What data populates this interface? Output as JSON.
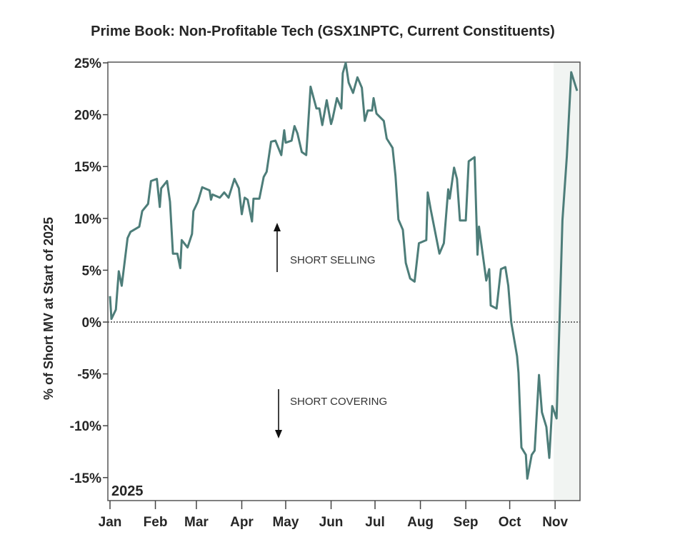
{
  "chart_data": {
    "type": "line",
    "title": "Prime Book: Non-Profitable Tech (GSX1NPTC, Current Constituents)",
    "ylabel": "% of Short MV at Start of 2025",
    "xlabel": "",
    "year_label": "2025",
    "ylim": [
      -17,
      25
    ],
    "xlim": [
      "2025-01-01",
      "2025-11-18"
    ],
    "y_ticks": [
      25,
      20,
      15,
      10,
      5,
      0,
      -5,
      -10,
      -15
    ],
    "y_tick_labels": [
      "25%",
      "20%",
      "15%",
      "10%",
      "5%",
      "0%",
      "-5%",
      "-10%",
      "-15%"
    ],
    "x_ticks": [
      "2025-01-01",
      "2025-02-01",
      "2025-03-01",
      "2025-04-01",
      "2025-05-01",
      "2025-06-01",
      "2025-07-01",
      "2025-08-01",
      "2025-09-01",
      "2025-10-01",
      "2025-11-01"
    ],
    "x_tick_labels": [
      "Jan",
      "Feb",
      "Mar",
      "Apr",
      "May",
      "Jun",
      "Jul",
      "Aug",
      "Sep",
      "Oct",
      "Nov"
    ],
    "reference_line": 0,
    "shaded_region_start": "2025-10-31",
    "grid": false,
    "line_color": "#4d7d79",
    "shade_color": "#f1f4f2",
    "annotations": {
      "up": "SHORT SELLING",
      "down": "SHORT COVERING"
    },
    "series": [
      {
        "x": [
          "2025-01-01",
          "2025-01-02",
          "2025-01-05",
          "2025-01-07",
          "2025-01-09",
          "2025-01-13",
          "2025-01-15",
          "2025-01-21",
          "2025-01-23",
          "2025-01-27",
          "2025-01-29",
          "2025-02-02",
          "2025-02-04",
          "2025-02-05",
          "2025-02-09",
          "2025-02-11",
          "2025-02-13",
          "2025-02-16",
          "2025-02-18",
          "2025-02-19",
          "2025-02-23",
          "2025-02-26",
          "2025-02-27",
          "2025-03-02",
          "2025-03-05",
          "2025-03-10",
          "2025-03-11",
          "2025-03-12",
          "2025-03-17",
          "2025-03-20",
          "2025-03-23",
          "2025-03-27",
          "2025-03-30",
          "2025-04-01",
          "2025-04-03",
          "2025-04-05",
          "2025-04-08",
          "2025-04-09",
          "2025-04-13",
          "2025-04-16",
          "2025-04-18",
          "2025-04-21",
          "2025-04-24",
          "2025-04-28",
          "2025-04-30",
          "2025-05-01",
          "2025-05-05",
          "2025-05-07",
          "2025-05-09",
          "2025-05-12",
          "2025-05-15",
          "2025-05-18",
          "2025-05-22",
          "2025-05-24",
          "2025-05-26",
          "2025-05-29",
          "2025-06-01",
          "2025-06-02",
          "2025-06-05",
          "2025-06-08",
          "2025-06-09",
          "2025-06-11",
          "2025-06-13",
          "2025-06-16",
          "2025-06-19",
          "2025-06-22",
          "2025-06-24",
          "2025-06-26",
          "2025-06-29",
          "2025-06-30",
          "2025-07-02",
          "2025-07-07",
          "2025-07-09",
          "2025-07-13",
          "2025-07-15",
          "2025-07-17",
          "2025-07-20",
          "2025-07-22",
          "2025-07-25",
          "2025-07-28",
          "2025-07-31",
          "2025-08-05",
          "2025-08-06",
          "2025-08-08",
          "2025-08-14",
          "2025-08-17",
          "2025-08-20",
          "2025-08-21",
          "2025-08-24",
          "2025-08-26",
          "2025-08-28",
          "2025-09-01",
          "2025-09-03",
          "2025-09-07",
          "2025-09-09",
          "2025-09-10",
          "2025-09-15",
          "2025-09-17",
          "2025-09-18",
          "2025-09-22",
          "2025-09-25",
          "2025-09-28",
          "2025-09-30",
          "2025-10-02",
          "2025-10-06",
          "2025-10-07",
          "2025-10-09",
          "2025-10-12",
          "2025-10-13",
          "2025-10-16",
          "2025-10-18",
          "2025-10-21",
          "2025-10-23",
          "2025-10-26",
          "2025-10-28",
          "2025-10-30",
          "2025-11-02",
          "2025-11-04",
          "2025-11-06",
          "2025-11-09",
          "2025-11-12",
          "2025-11-16"
        ],
        "y": [
          2.5,
          0.3,
          1.2,
          4.9,
          3.5,
          8.1,
          8.7,
          9.2,
          10.7,
          11.4,
          13.6,
          13.8,
          11.1,
          12.9,
          13.6,
          11.6,
          6.6,
          6.6,
          5.2,
          7.9,
          7.2,
          8.5,
          10.7,
          11.6,
          13.0,
          12.7,
          11.8,
          12.3,
          12.0,
          12.5,
          12.0,
          13.8,
          12.9,
          10.4,
          12.0,
          11.8,
          9.7,
          11.9,
          11.9,
          14.0,
          14.5,
          17.4,
          17.5,
          16.1,
          18.5,
          17.3,
          17.5,
          18.9,
          18.2,
          16.4,
          16.1,
          22.7,
          20.6,
          20.6,
          19.0,
          21.4,
          19.1,
          19.6,
          21.6,
          20.6,
          24.0,
          25.0,
          23.1,
          22.1,
          23.6,
          22.6,
          19.4,
          20.4,
          20.4,
          21.6,
          20.1,
          19.4,
          17.7,
          16.8,
          14.1,
          9.9,
          8.9,
          5.7,
          4.2,
          3.9,
          7.6,
          7.9,
          12.5,
          10.9,
          6.6,
          7.6,
          12.8,
          11.9,
          14.9,
          13.8,
          9.8,
          9.8,
          15.5,
          15.9,
          6.5,
          9.2,
          4.0,
          5.1,
          1.6,
          1.3,
          5.1,
          5.3,
          3.5,
          0.0,
          -3.3,
          -4.9,
          -12.1,
          -12.8,
          -15.1,
          -12.8,
          -12.4,
          -5.1,
          -8.7,
          -10.1,
          -13.1,
          -8.1,
          -9.3,
          0.0,
          9.8,
          16.0,
          24.1,
          22.3
        ]
      }
    ]
  }
}
